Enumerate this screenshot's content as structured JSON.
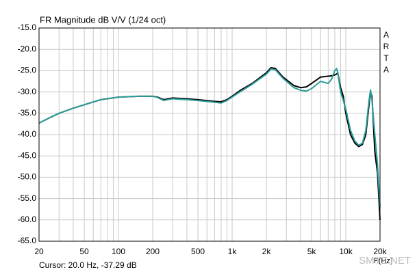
{
  "chart_data": {
    "type": "line",
    "title": "FR Magnitude dB V/V (1/24 oct)",
    "x_scale": "log",
    "grid": true,
    "x": [
      20,
      25,
      30,
      40,
      50,
      70,
      100,
      150,
      200,
      220,
      250,
      300,
      400,
      500,
      700,
      800,
      900,
      1000,
      1200,
      1500,
      2000,
      2200,
      2400,
      2800,
      3500,
      4000,
      4500,
      5000,
      6000,
      7000,
      7500,
      8000,
      8300,
      8500,
      9000,
      9500,
      10000,
      11000,
      12000,
      13000,
      14000,
      15000,
      16000,
      16500,
      17000,
      18000,
      19000,
      20000
    ],
    "series": [
      {
        "color": "#000000",
        "values": [
          -37.3,
          -36,
          -35,
          -33.8,
          -33,
          -31.8,
          -31.2,
          -31,
          -31,
          -31.2,
          -31.8,
          -31.4,
          -31.6,
          -31.8,
          -32.2,
          -32.3,
          -31.8,
          -31,
          -29.5,
          -28,
          -25.5,
          -24.3,
          -24.5,
          -26.5,
          -28.5,
          -29,
          -28.8,
          -28,
          -26.5,
          -26.3,
          -26.2,
          -26,
          -25.8,
          -25.5,
          -29,
          -31,
          -35,
          -40,
          -42,
          -42.8,
          -42.3,
          -40,
          -33,
          -30,
          -31,
          -44,
          -49,
          -60
        ]
      },
      {
        "color": "#2a9d9a",
        "values": [
          -37.3,
          -36,
          -35,
          -33.8,
          -33,
          -31.8,
          -31.2,
          -31,
          -31,
          -31.3,
          -32,
          -31.6,
          -31.8,
          -32,
          -32.4,
          -32.6,
          -32,
          -31.2,
          -29.8,
          -28.2,
          -25.8,
          -24.6,
          -24.8,
          -26.8,
          -29,
          -29.6,
          -29.8,
          -29.2,
          -27.5,
          -28,
          -27,
          -25,
          -24.5,
          -25.5,
          -30,
          -32,
          -34,
          -39,
          -41.5,
          -42.5,
          -42,
          -39,
          -32,
          -29.5,
          -32,
          -40,
          -47,
          -57
        ]
      }
    ],
    "xlim": [
      20,
      20000
    ],
    "ylim": [
      -65,
      -15
    ],
    "xticks": [
      20,
      50,
      100,
      200,
      500,
      {
        "value": 1000,
        "label": "1k"
      },
      {
        "value": 2000,
        "label": "2k"
      },
      {
        "value": 5000,
        "label": "5k"
      },
      {
        "value": 10000,
        "label": "10k"
      },
      {
        "value": 20000,
        "label": "20k"
      }
    ],
    "x_minor_ticks": [
      30,
      40,
      60,
      70,
      80,
      90,
      300,
      400,
      600,
      700,
      800,
      900,
      3000,
      4000,
      6000,
      7000,
      8000,
      9000
    ],
    "yticks": [
      {
        "value": -65,
        "label": "-65.0"
      },
      {
        "value": -60,
        "label": "-60.0"
      },
      {
        "value": -55,
        "label": "-55.0"
      },
      {
        "value": -50,
        "label": "-50.0"
      },
      {
        "value": -45,
        "label": "-45.0"
      },
      {
        "value": -40,
        "label": "-40.0"
      },
      {
        "value": -35,
        "label": "-35.0"
      },
      {
        "value": -30,
        "label": "-30.0"
      },
      {
        "value": -25,
        "label": "-25.0"
      },
      {
        "value": -20,
        "label": "-20.0"
      },
      {
        "value": -15,
        "label": "-15.0"
      }
    ],
    "side_label": "ARTA",
    "x_label": "F(Hz)",
    "cursor": "Cursor: 20.0 Hz, -37.29 dB",
    "watermark": "SMYZ.NET"
  }
}
